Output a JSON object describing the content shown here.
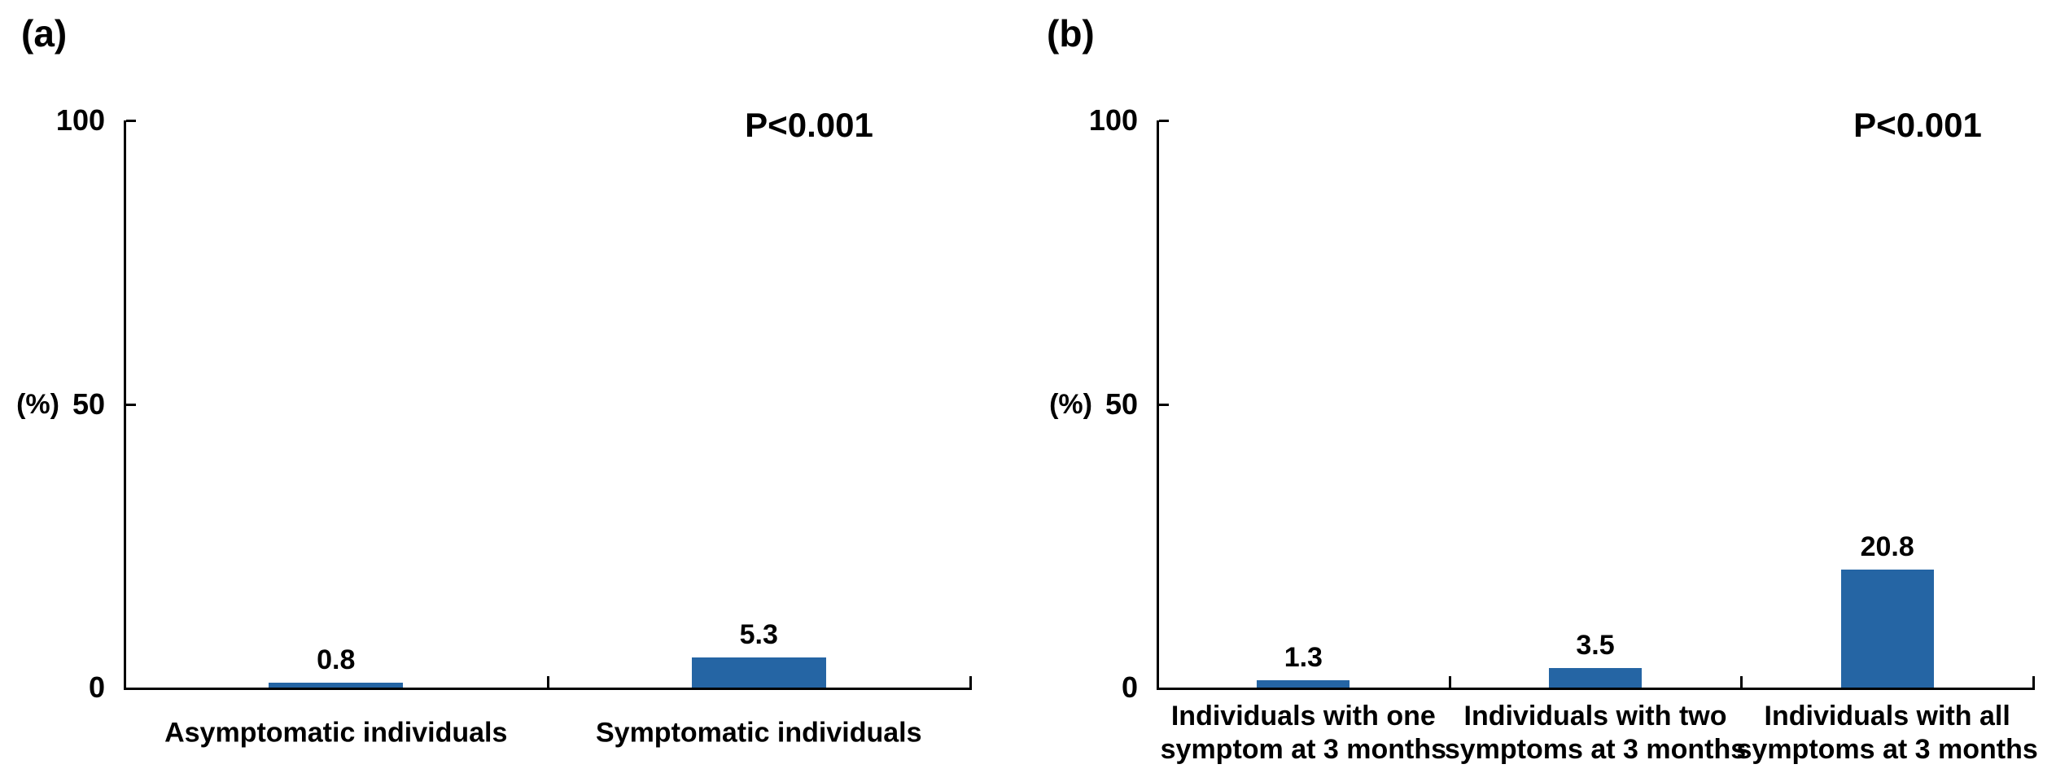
{
  "figure": {
    "background": "#ffffff",
    "text_color": "#000000"
  },
  "chart_data": [
    {
      "panel_label": "(a)",
      "type": "bar",
      "title": "",
      "xlabel": "",
      "ylabel": "(%)",
      "categories": [
        "Asymptomatic individuals",
        "Symptomatic individuals"
      ],
      "values": [
        0.8,
        5.3
      ],
      "ylim": [
        0,
        100
      ],
      "yticks": [
        0,
        50,
        100
      ],
      "grid": false,
      "legend": false,
      "annotation": "P<0.001",
      "bar_color": "#2565A4",
      "axis_color": "#000000"
    },
    {
      "panel_label": "(b)",
      "type": "bar",
      "title": "",
      "xlabel": "",
      "ylabel": "(%)",
      "categories": [
        "Individuals with one\nsymptom at 3 months",
        "Individuals with two\nsymptoms at 3 months",
        "Individuals with all\nsymptoms at 3 months"
      ],
      "values": [
        1.3,
        3.5,
        20.8
      ],
      "ylim": [
        0,
        100
      ],
      "yticks": [
        0,
        50,
        100
      ],
      "grid": false,
      "legend": false,
      "annotation": "P<0.001",
      "bar_color": "#2565A4",
      "axis_color": "#000000"
    }
  ]
}
